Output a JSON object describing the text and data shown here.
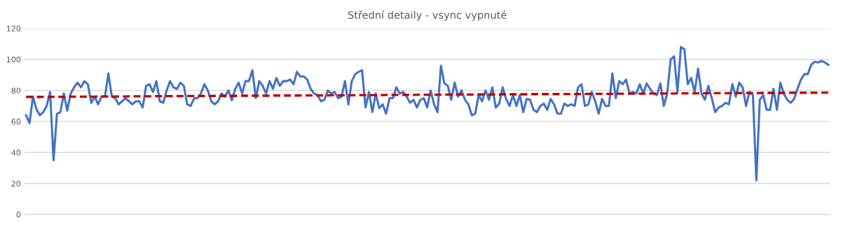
{
  "chart_data": {
    "type": "line",
    "title": "Střední detaily - vsync vypnuté",
    "ylim": [
      0,
      120
    ],
    "yticks": [
      0,
      20,
      40,
      60,
      80,
      100,
      120
    ],
    "tick_labels": "y",
    "grid": "y",
    "legend": false,
    "marker": "none",
    "categories": [
      null,
      null,
      null,
      null,
      null,
      null,
      null,
      null,
      null,
      null,
      null,
      null,
      null,
      null,
      null,
      null,
      null,
      null,
      null,
      null,
      null,
      null,
      null,
      null,
      null,
      null,
      null,
      null,
      null,
      null,
      null,
      null,
      null,
      null,
      null,
      null,
      null,
      null,
      null,
      null,
      null,
      null,
      null,
      null,
      null,
      null,
      null,
      null,
      null,
      null,
      null,
      null,
      null,
      null,
      null,
      null,
      null,
      null,
      null,
      null,
      null,
      null,
      null,
      null,
      null,
      null,
      null,
      null,
      null,
      null,
      null,
      null,
      null,
      null,
      null,
      null,
      null,
      null,
      null,
      null,
      null,
      null,
      null,
      null,
      null,
      null,
      null,
      null,
      null,
      null,
      null,
      null,
      null,
      null,
      null,
      null,
      null,
      null,
      null,
      null,
      null,
      null,
      null,
      null,
      null,
      null,
      null,
      null,
      null,
      null,
      null,
      null,
      null,
      null,
      null,
      null,
      null,
      null,
      null,
      null,
      null,
      null,
      null,
      null,
      null,
      null,
      null,
      null,
      null,
      null,
      null,
      null,
      null,
      null,
      null,
      null,
      null,
      null,
      null,
      null,
      null,
      null,
      null,
      null,
      null,
      null,
      null,
      null,
      null,
      null,
      null,
      null,
      null,
      null,
      null,
      null,
      null,
      null,
      null,
      null,
      null,
      null,
      null,
      null,
      null,
      null,
      null,
      null,
      null,
      null,
      null,
      null,
      null,
      null,
      null,
      null,
      null,
      null,
      null,
      null,
      null,
      null,
      null,
      null,
      null,
      null,
      null,
      null,
      null,
      null,
      null,
      null,
      null,
      null,
      null,
      null,
      null,
      null,
      null,
      null,
      null,
      null,
      null,
      null,
      null,
      null,
      null,
      null,
      null,
      null,
      null,
      null,
      null,
      null,
      null,
      null,
      null,
      null,
      null,
      null,
      null,
      null,
      null,
      null,
      null,
      null,
      null,
      null,
      null,
      null,
      null,
      null,
      null,
      null,
      null
    ],
    "series": [
      {
        "color": "#4472c4",
        "line_style": "solid",
        "values": [
          64,
          59,
          76,
          68,
          64,
          66,
          70,
          79,
          35,
          65,
          66,
          78,
          67,
          78,
          82,
          85,
          82,
          86,
          84,
          72,
          76,
          71,
          76,
          76,
          91,
          76,
          75,
          71,
          73,
          75,
          73,
          71,
          73,
          73,
          69,
          83,
          84,
          79,
          86,
          73,
          72,
          80,
          86,
          82,
          81,
          85,
          83,
          71,
          70,
          75,
          75,
          78,
          84,
          80,
          73,
          71,
          73,
          78,
          76,
          80,
          73.6,
          81,
          85,
          78,
          86,
          86,
          93,
          75,
          86,
          83,
          78,
          86,
          81,
          88,
          83,
          86,
          86,
          87,
          84,
          92,
          89,
          89,
          87,
          81,
          78,
          77,
          73,
          74,
          80,
          78,
          79,
          75,
          76,
          86,
          71,
          86,
          90.5,
          92,
          93,
          69,
          79,
          66,
          78,
          68.5,
          71,
          65,
          75,
          75,
          82,
          78,
          79,
          76,
          72,
          74,
          69,
          74,
          75,
          69,
          80,
          71,
          66,
          96,
          84.5,
          83,
          74,
          85,
          76,
          80,
          74,
          71,
          64,
          65,
          77,
          73,
          80,
          74,
          82,
          69,
          71.5,
          82,
          74.5,
          70,
          77,
          70,
          77,
          66,
          74.5,
          74,
          67.5,
          66,
          70,
          71.5,
          67.5,
          74.5,
          71,
          65,
          65,
          71.5,
          70,
          71,
          70,
          82,
          84,
          70,
          71,
          79,
          73,
          65,
          74.5,
          70,
          70,
          91,
          75,
          86,
          84,
          87,
          78,
          79,
          78,
          84,
          78,
          84.5,
          81,
          78,
          77,
          84.5,
          70,
          78,
          100,
          102,
          79,
          108,
          106.5,
          84,
          88,
          79,
          94,
          78,
          74,
          83,
          75,
          66,
          69,
          70,
          72,
          71,
          84,
          76,
          85,
          82,
          70,
          79,
          77,
          22,
          74,
          77,
          67.5,
          67.5,
          81,
          67.5,
          85,
          78,
          74,
          72,
          74.5,
          81,
          87,
          90.5,
          90.5,
          96.5,
          98.5,
          98,
          99,
          98,
          96.5
        ]
      },
      {
        "color": "#c00000",
        "line_style": "dashed",
        "values": [
          75.8,
          75.8,
          75.8,
          75.8,
          75.8,
          75.9,
          75.9,
          75.9,
          75.9,
          75.9,
          75.9,
          75.9,
          75.9,
          76.0,
          76.0,
          76.0,
          76.0,
          76.0,
          76.0,
          76.0,
          76.0,
          76.1,
          76.1,
          76.1,
          76.1,
          76.1,
          76.1,
          76.1,
          76.1,
          76.1,
          76.2,
          76.2,
          76.2,
          76.2,
          76.2,
          76.2,
          76.2,
          76.2,
          76.3,
          76.3,
          76.3,
          76.3,
          76.3,
          76.3,
          76.3,
          76.3,
          76.3,
          76.4,
          76.4,
          76.4,
          76.4,
          76.4,
          76.4,
          76.4,
          76.4,
          76.5,
          76.5,
          76.5,
          76.5,
          76.5,
          76.5,
          76.5,
          76.5,
          76.6,
          76.6,
          76.6,
          76.6,
          76.6,
          76.6,
          76.6,
          76.6,
          76.6,
          76.7,
          76.7,
          76.7,
          76.7,
          76.7,
          76.7,
          76.7,
          76.7,
          76.8,
          76.8,
          76.8,
          76.8,
          76.8,
          76.8,
          76.8,
          76.8,
          76.8,
          76.9,
          76.9,
          76.9,
          76.9,
          76.9,
          76.9,
          76.9,
          76.9,
          77.0,
          77.0,
          77.0,
          77.0,
          77.0,
          77.0,
          77.0,
          77.0,
          77.1,
          77.1,
          77.1,
          77.1,
          77.1,
          77.1,
          77.1,
          77.1,
          77.1,
          77.2,
          77.2,
          77.2,
          77.2,
          77.2,
          77.2,
          77.2,
          77.2,
          77.3,
          77.3,
          77.3,
          77.3,
          77.3,
          77.3,
          77.3,
          77.3,
          77.3,
          77.4,
          77.4,
          77.4,
          77.4,
          77.4,
          77.4,
          77.4,
          77.4,
          77.5,
          77.5,
          77.5,
          77.5,
          77.5,
          77.5,
          77.5,
          77.5,
          77.5,
          77.6,
          77.6,
          77.6,
          77.6,
          77.6,
          77.6,
          77.6,
          77.6,
          77.7,
          77.7,
          77.7,
          77.7,
          77.7,
          77.7,
          77.7,
          77.7,
          77.8,
          77.8,
          77.8,
          77.8,
          77.8,
          77.8,
          77.8,
          77.8,
          77.8,
          77.9,
          77.9,
          77.9,
          77.9,
          77.9,
          77.9,
          77.9,
          77.9,
          78.0,
          78.0,
          78.0,
          78.0,
          78.0,
          78.0,
          78.0,
          78.0,
          78.0,
          78.1,
          78.1,
          78.1,
          78.1,
          78.1,
          78.1,
          78.1,
          78.1,
          78.2,
          78.2,
          78.2,
          78.2,
          78.2,
          78.2,
          78.2,
          78.2,
          78.3,
          78.3,
          78.3,
          78.3,
          78.3,
          78.3,
          78.3,
          78.3,
          78.3,
          78.4,
          78.4,
          78.4,
          78.4,
          78.4,
          78.4,
          78.4,
          78.4,
          78.5,
          78.5,
          78.5,
          78.5,
          78.5,
          78.5,
          78.5,
          78.5,
          78.5,
          78.6,
          78.6,
          78.6
        ]
      }
    ]
  }
}
